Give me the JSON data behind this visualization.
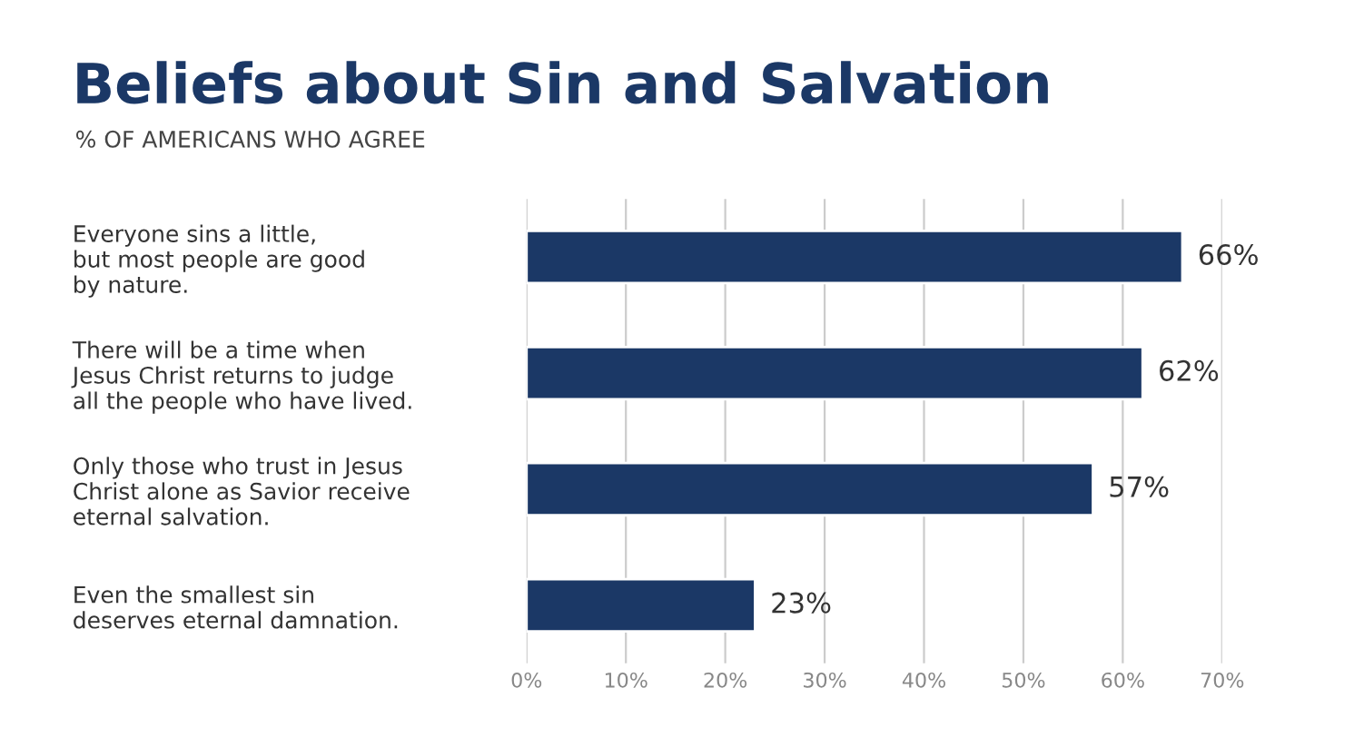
{
  "chart_data": {
    "type": "bar",
    "orientation": "horizontal",
    "title": "Beliefs about Sin and Salvation",
    "subtitle": "% OF AMERICANS WHO AGREE",
    "categories": [
      "Everyone sins a little,\nbut most people are good\nby nature.",
      "There will be a time when\nJesus Christ returns to judge\nall the people who have lived.",
      "Only those who trust in Jesus\nChrist alone as Savior receive\neternal salvation.",
      "Even the smallest sin\ndeserves eternal damnation."
    ],
    "values": [
      66,
      62,
      57,
      23
    ],
    "value_labels": [
      "66%",
      "62%",
      "57%",
      "23%"
    ],
    "color": "#1b3866",
    "xlim": [
      0,
      70
    ],
    "xticks": [
      {
        "value": 0,
        "label": "0%"
      },
      {
        "value": 10,
        "label": "10%"
      },
      {
        "value": 20,
        "label": "20%"
      },
      {
        "value": 30,
        "label": "30%"
      },
      {
        "value": 40,
        "label": "40%"
      },
      {
        "value": 50,
        "label": "50%"
      },
      {
        "value": 60,
        "label": "60%"
      },
      {
        "value": 70,
        "label": "70%"
      }
    ],
    "grid": "x",
    "legend": false
  }
}
